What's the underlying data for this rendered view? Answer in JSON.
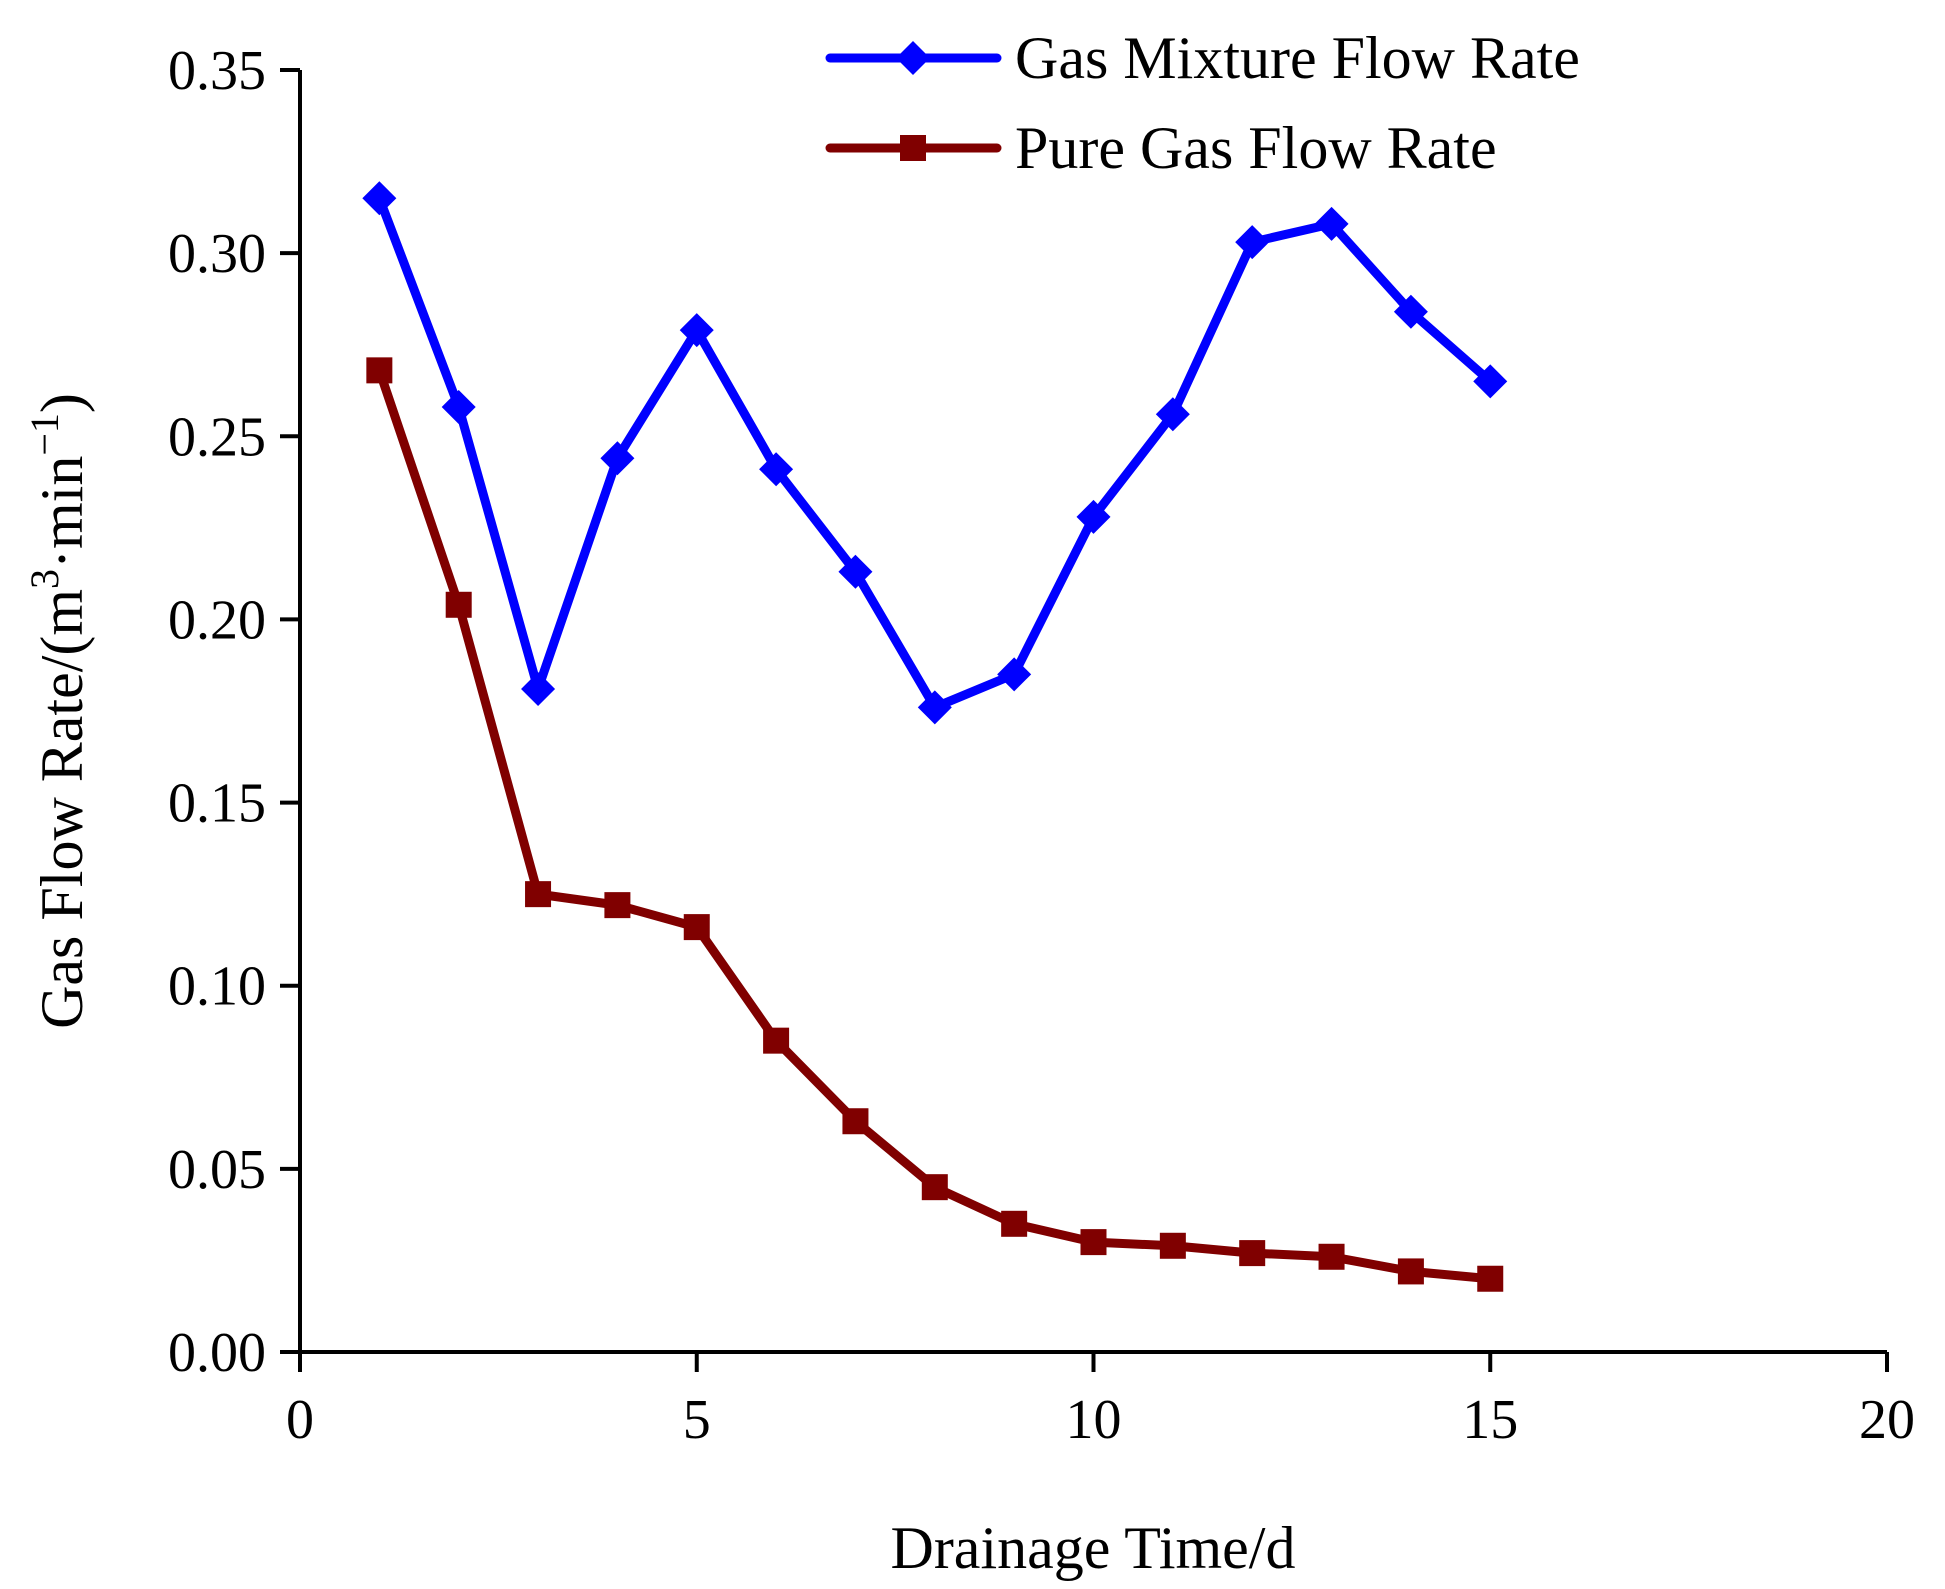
{
  "chart_data": {
    "type": "line",
    "title": "",
    "xlabel": "Drainage Time/d",
    "ylabel": {
      "prefix": "Gas Flow Rate/(m",
      "sup1": "3",
      "middle": "·min",
      "sup2": "−1",
      "suffix": ")"
    },
    "xlim": [
      0,
      20
    ],
    "ylim": [
      0,
      0.35
    ],
    "xticks": [
      0,
      5,
      10,
      15,
      20
    ],
    "xtick_labels": [
      "0",
      "5",
      "10",
      "15",
      "20"
    ],
    "yticks": [
      0,
      0.05,
      0.1,
      0.15,
      0.2,
      0.25,
      0.3,
      0.35
    ],
    "ytick_labels": [
      "0.00",
      "0.05",
      "0.10",
      "0.15",
      "0.20",
      "0.25",
      "0.30",
      "0.35"
    ],
    "grid": false,
    "legend_position": "top-right",
    "x": [
      1,
      2,
      3,
      4,
      5,
      6,
      7,
      8,
      9,
      10,
      11,
      12,
      13,
      14,
      15
    ],
    "series": [
      {
        "name": "Gas Mixture Flow Rate",
        "color": "#0000ff",
        "marker": "diamond",
        "values": [
          0.315,
          0.258,
          0.181,
          0.244,
          0.279,
          0.241,
          0.213,
          0.176,
          0.185,
          0.228,
          0.256,
          0.303,
          0.308,
          0.284,
          0.265
        ]
      },
      {
        "name": "Pure Gas Flow Rate",
        "color": "#800000",
        "marker": "square",
        "values": [
          0.268,
          0.204,
          0.125,
          0.122,
          0.116,
          0.085,
          0.063,
          0.045,
          0.035,
          0.03,
          0.029,
          0.027,
          0.026,
          0.022,
          0.02
        ]
      }
    ]
  }
}
